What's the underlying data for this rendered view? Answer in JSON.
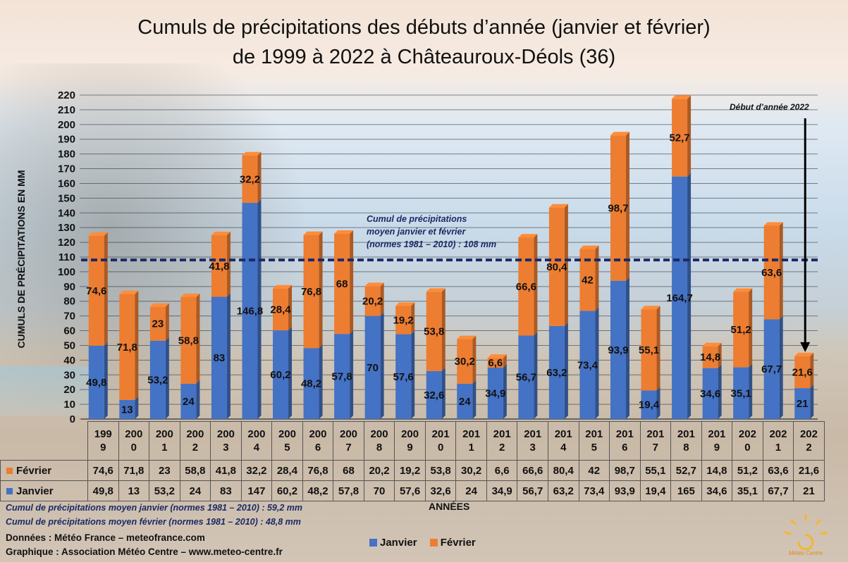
{
  "title_line1": "Cumuls de précipitations des débuts d’année (janvier et février)",
  "title_line2": "de 1999 à 2022 à Châteauroux-Déols (36)",
  "avg_note": [
    "Cumul de précipitations",
    "moyen janvier et février",
    "(normes 1981 – 2010) : 108 mm"
  ],
  "annotation_2022": "Début d’année 2022",
  "norm_jan": "Cumul de précipitations moyen janvier (normes 1981 – 2010) : 59,2 mm",
  "norm_feb": "Cumul de précipitations moyen février (normes 1981 – 2010) : 48,8 mm",
  "source_data": "Données : Météo France – meteofrance.com",
  "source_graph": "Graphique : Association Météo Centre – www.meteo-centre.fr",
  "logo_text": "Météo Centre",
  "colors": {
    "janvier": "#4472c4",
    "fevrier": "#ed7d31",
    "avg_line": "#1b2a66"
  },
  "table": {
    "year_labels": [
      [
        "199",
        "9"
      ],
      [
        "200",
        "0"
      ],
      [
        "200",
        "1"
      ],
      [
        "200",
        "2"
      ],
      [
        "200",
        "3"
      ],
      [
        "200",
        "4"
      ],
      [
        "200",
        "5"
      ],
      [
        "200",
        "6"
      ],
      [
        "200",
        "7"
      ],
      [
        "200",
        "8"
      ],
      [
        "200",
        "9"
      ],
      [
        "201",
        "0"
      ],
      [
        "201",
        "1"
      ],
      [
        "201",
        "2"
      ],
      [
        "201",
        "3"
      ],
      [
        "201",
        "4"
      ],
      [
        "201",
        "5"
      ],
      [
        "201",
        "6"
      ],
      [
        "201",
        "7"
      ],
      [
        "201",
        "8"
      ],
      [
        "201",
        "9"
      ],
      [
        "202",
        "0"
      ],
      [
        "202",
        "1"
      ],
      [
        "202",
        "2"
      ]
    ],
    "fevrier_row": [
      "74,6",
      "71,8",
      "23",
      "58,8",
      "41,8",
      "32,2",
      "28,4",
      "76,8",
      "68",
      "20,2",
      "19,2",
      "53,8",
      "30,2",
      "6,6",
      "66,6",
      "80,4",
      "42",
      "98,7",
      "55,1",
      "52,7",
      "14,8",
      "51,2",
      "63,6",
      "21,6"
    ],
    "janvier_row": [
      "49,8",
      "13",
      "53,2",
      "24",
      "83",
      "147",
      "60,2",
      "48,2",
      "57,8",
      "70",
      "57,6",
      "32,6",
      "24",
      "34,9",
      "56,7",
      "63,2",
      "73,4",
      "93,9",
      "19,4",
      "165",
      "34,6",
      "35,1",
      "67,7",
      "21"
    ]
  },
  "chart_data": {
    "type": "bar",
    "stacked": true,
    "title": "Cumuls de précipitations des débuts d’année (janvier et février) de 1999 à 2022 à Châteauroux-Déols (36)",
    "xlabel": "ANNÉES",
    "ylabel": "CUMULS DE PRÉCIPITATIONS EN MM",
    "ylim": [
      0,
      220
    ],
    "yticks": [
      0,
      10,
      20,
      30,
      40,
      50,
      60,
      70,
      80,
      90,
      100,
      110,
      120,
      130,
      140,
      150,
      160,
      170,
      180,
      190,
      200,
      210,
      220
    ],
    "grid": true,
    "legend": "bottom",
    "categories": [
      "1999",
      "2000",
      "2001",
      "2002",
      "2003",
      "2004",
      "2005",
      "2006",
      "2007",
      "2008",
      "2009",
      "2010",
      "2011",
      "2012",
      "2013",
      "2014",
      "2015",
      "2016",
      "2017",
      "2018",
      "2019",
      "2020",
      "2021",
      "2022"
    ],
    "series": [
      {
        "name": "Janvier",
        "color": "#4472c4",
        "values": [
          49.8,
          13,
          53.2,
          24,
          83,
          146.8,
          60.2,
          48.2,
          57.8,
          70,
          57.6,
          32.6,
          24,
          34.9,
          56.7,
          63.2,
          73.4,
          93.9,
          19.4,
          164.7,
          34.6,
          35.1,
          67.7,
          21
        ],
        "labels": [
          "49,8",
          "13",
          "53,2",
          "24",
          "83",
          "146,8",
          "60,2",
          "48,2",
          "57,8",
          "70",
          "57,6",
          "32,6",
          "24",
          "34,9",
          "56,7",
          "63,2",
          "73,4",
          "93,9",
          "19,4",
          "164,7",
          "34,6",
          "35,1",
          "67,7",
          "21"
        ]
      },
      {
        "name": "Février",
        "color": "#ed7d31",
        "values": [
          74.6,
          71.8,
          23,
          58.8,
          41.8,
          32.2,
          28.4,
          76.8,
          68,
          20.2,
          19.2,
          53.8,
          30.2,
          6.6,
          66.6,
          80.4,
          42,
          98.7,
          55.1,
          52.7,
          14.8,
          51.2,
          63.6,
          21.6
        ],
        "labels": [
          "74,6",
          "71,8",
          "23",
          "58,8",
          "41,8",
          "32,2",
          "28,4",
          "76,8",
          "68",
          "20,2",
          "19,2",
          "53,8",
          "30,2",
          "6,6",
          "66,6",
          "80,4",
          "42",
          "98,7",
          "55,1",
          "52,7",
          "14,8",
          "51,2",
          "63,6",
          "21,6"
        ]
      }
    ],
    "reference_line": {
      "value": 108
    }
  }
}
